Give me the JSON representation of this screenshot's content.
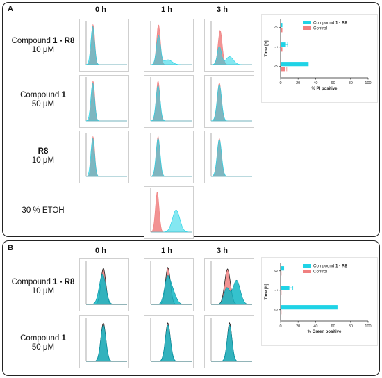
{
  "panelA": {
    "label": "A",
    "columns": [
      "0 h",
      "1 h",
      "3 h"
    ],
    "rows": [
      {
        "line1_pre": "Compound ",
        "line1_bold": "1 - R8",
        "line2": "10 μM"
      },
      {
        "line1_pre": "Compound ",
        "line1_bold": "1",
        "line2": "50 μM"
      },
      {
        "line1_pre": "",
        "line1_bold": "R8",
        "line2": "10 μM"
      },
      {
        "line1_pre": "30 % ETOH",
        "line1_bold": "",
        "line2": ""
      }
    ]
  },
  "panelB": {
    "label": "B",
    "columns": [
      "0 h",
      "1 h",
      "3 h"
    ],
    "rows": [
      {
        "line1_pre": "Compound ",
        "line1_bold": "1 - R8",
        "line2": "10 μM"
      },
      {
        "line1_pre": "Compound ",
        "line1_bold": "1",
        "line2": "50 μM"
      }
    ]
  },
  "colors": {
    "compound": "#1fd3e6",
    "control": "#f08080",
    "overlap": "#3a8fa5",
    "axis": "#222222"
  },
  "chart_data": [
    {
      "type": "bar",
      "orientation": "horizontal",
      "ylabel": "Time [h]",
      "xlabel": "% PI positive",
      "categories": [
        "0",
        "1",
        "3"
      ],
      "xlim": [
        0,
        100
      ],
      "xticks": [
        "0",
        "20",
        "40",
        "60",
        "80",
        "100"
      ],
      "legend_placement": "top-right",
      "series": [
        {
          "name_pre": "Compound ",
          "name_bold": "1 - R8",
          "values": [
            2,
            6,
            32
          ],
          "errors": [
            0,
            2,
            0
          ],
          "color": "#1fd3e6"
        },
        {
          "name_pre": "Control",
          "name_bold": "",
          "values": [
            2,
            2,
            5
          ],
          "errors": [
            0,
            0,
            2
          ],
          "color": "#f08080"
        }
      ]
    },
    {
      "type": "bar",
      "orientation": "horizontal",
      "ylabel": "Time [h]",
      "xlabel": "% Green positive",
      "categories": [
        "0",
        "1",
        "3"
      ],
      "xlim": [
        0,
        100
      ],
      "xticks": [
        "0",
        "20",
        "40",
        "60",
        "80",
        "100"
      ],
      "legend_placement": "top-right",
      "series": [
        {
          "name_pre": "Compound ",
          "name_bold": "1 - R8",
          "values": [
            4,
            10,
            65
          ],
          "errors": [
            0,
            4,
            0
          ],
          "color": "#1fd3e6"
        },
        {
          "name_pre": "Control",
          "name_bold": "",
          "values": [
            1,
            1,
            1
          ],
          "errors": [
            0,
            0,
            0
          ],
          "color": "#f08080"
        }
      ]
    }
  ]
}
